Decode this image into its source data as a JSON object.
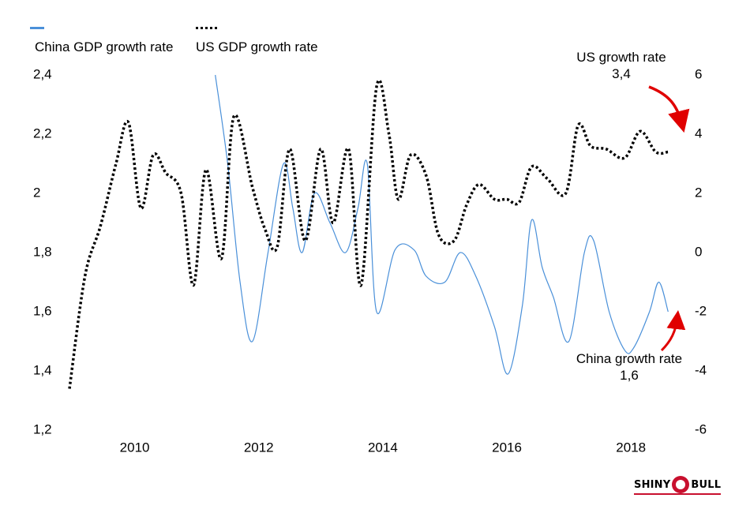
{
  "colors": {
    "china": "#4a90d9",
    "us": "#000000",
    "arrow": "#e00000"
  },
  "legend": [
    {
      "label": "China GDP growth rate",
      "style": "solid",
      "color": "#4a90d9"
    },
    {
      "label": "US GDP growth rate",
      "style": "dotted",
      "color": "#000000"
    }
  ],
  "annotations": {
    "us": {
      "title": "US growth rate",
      "value": "3,4"
    },
    "china": {
      "title": "China growth rate",
      "value": "1,6"
    }
  },
  "logo": {
    "left": "SHINY",
    "right": "BULL"
  },
  "chart_data": {
    "type": "line",
    "title": "",
    "xlabel": "",
    "x_ticks": [
      {
        "x": 2010,
        "label": "2010"
      },
      {
        "x": 2012,
        "label": "2012"
      },
      {
        "x": 2014,
        "label": "2014"
      },
      {
        "x": 2016,
        "label": "2016"
      },
      {
        "x": 2018,
        "label": "2018"
      }
    ],
    "xlim": [
      2009,
      2018.85
    ],
    "y_left": {
      "label": "China GDP growth rate",
      "ylim": [
        1.2,
        2.4
      ],
      "ticks": [
        {
          "v": 2.4,
          "label": "2,4"
        },
        {
          "v": 2.2,
          "label": "2,2"
        },
        {
          "v": 2.0,
          "label": "2"
        },
        {
          "v": 1.8,
          "label": "1,8"
        },
        {
          "v": 1.6,
          "label": "1,6"
        },
        {
          "v": 1.4,
          "label": "1,4"
        },
        {
          "v": 1.2,
          "label": "1,2"
        }
      ]
    },
    "y_right": {
      "label": "US GDP growth rate",
      "ylim": [
        -6,
        6
      ],
      "ticks": [
        {
          "v": 6,
          "label": "6"
        },
        {
          "v": 4,
          "label": "4"
        },
        {
          "v": 2,
          "label": "2"
        },
        {
          "v": 0,
          "label": "0"
        },
        {
          "v": -2,
          "label": "-2"
        },
        {
          "v": -4,
          "label": "-4"
        },
        {
          "v": -6,
          "label": "-6"
        }
      ]
    },
    "series": [
      {
        "name": "China GDP growth rate",
        "axis": "left",
        "style": "solid",
        "x": [
          2011.35,
          2011.55,
          2011.75,
          2011.95,
          2012.2,
          2012.45,
          2012.6,
          2012.75,
          2012.95,
          2013.2,
          2013.45,
          2013.65,
          2013.8,
          2013.95,
          2014.25,
          2014.55,
          2014.75,
          2015.05,
          2015.3,
          2015.55,
          2015.85,
          2016.07,
          2016.3,
          2016.45,
          2016.62,
          2016.8,
          2017.05,
          2017.3,
          2017.45,
          2017.7,
          2017.95,
          2018.1,
          2018.35,
          2018.5,
          2018.65
        ],
        "values": [
          2.4,
          2.1,
          1.7,
          1.5,
          1.8,
          2.1,
          1.95,
          1.8,
          2.0,
          1.9,
          1.8,
          1.95,
          2.1,
          1.6,
          1.81,
          1.81,
          1.72,
          1.7,
          1.8,
          1.72,
          1.55,
          1.39,
          1.62,
          1.91,
          1.75,
          1.65,
          1.5,
          1.8,
          1.84,
          1.6,
          1.47,
          1.48,
          1.6,
          1.7,
          1.6
        ]
      },
      {
        "name": "US GDP growth rate",
        "axis": "right",
        "style": "dotted",
        "x": [
          2009.0,
          2009.25,
          2009.5,
          2009.75,
          2009.95,
          2010.15,
          2010.35,
          2010.55,
          2010.8,
          2011.0,
          2011.2,
          2011.45,
          2011.65,
          2011.95,
          2012.15,
          2012.35,
          2012.55,
          2012.8,
          2013.05,
          2013.25,
          2013.5,
          2013.7,
          2013.95,
          2014.15,
          2014.3,
          2014.5,
          2014.75,
          2014.95,
          2015.2,
          2015.4,
          2015.6,
          2015.85,
          2016.05,
          2016.25,
          2016.45,
          2016.7,
          2017.0,
          2017.2,
          2017.4,
          2017.65,
          2017.95,
          2018.2,
          2018.45,
          2018.65
        ],
        "values": [
          -4.6,
          -0.8,
          0.9,
          3.0,
          4.4,
          1.5,
          3.3,
          2.7,
          2.0,
          -1.1,
          2.8,
          -0.2,
          4.6,
          2.2,
          0.8,
          0.2,
          3.5,
          0.4,
          3.5,
          1.0,
          3.5,
          -1.1,
          5.6,
          4.0,
          1.8,
          3.3,
          2.6,
          0.6,
          0.4,
          1.6,
          2.3,
          1.8,
          1.8,
          1.7,
          2.9,
          2.5,
          2.0,
          4.3,
          3.6,
          3.5,
          3.2,
          4.1,
          3.4,
          3.4
        ]
      }
    ]
  }
}
